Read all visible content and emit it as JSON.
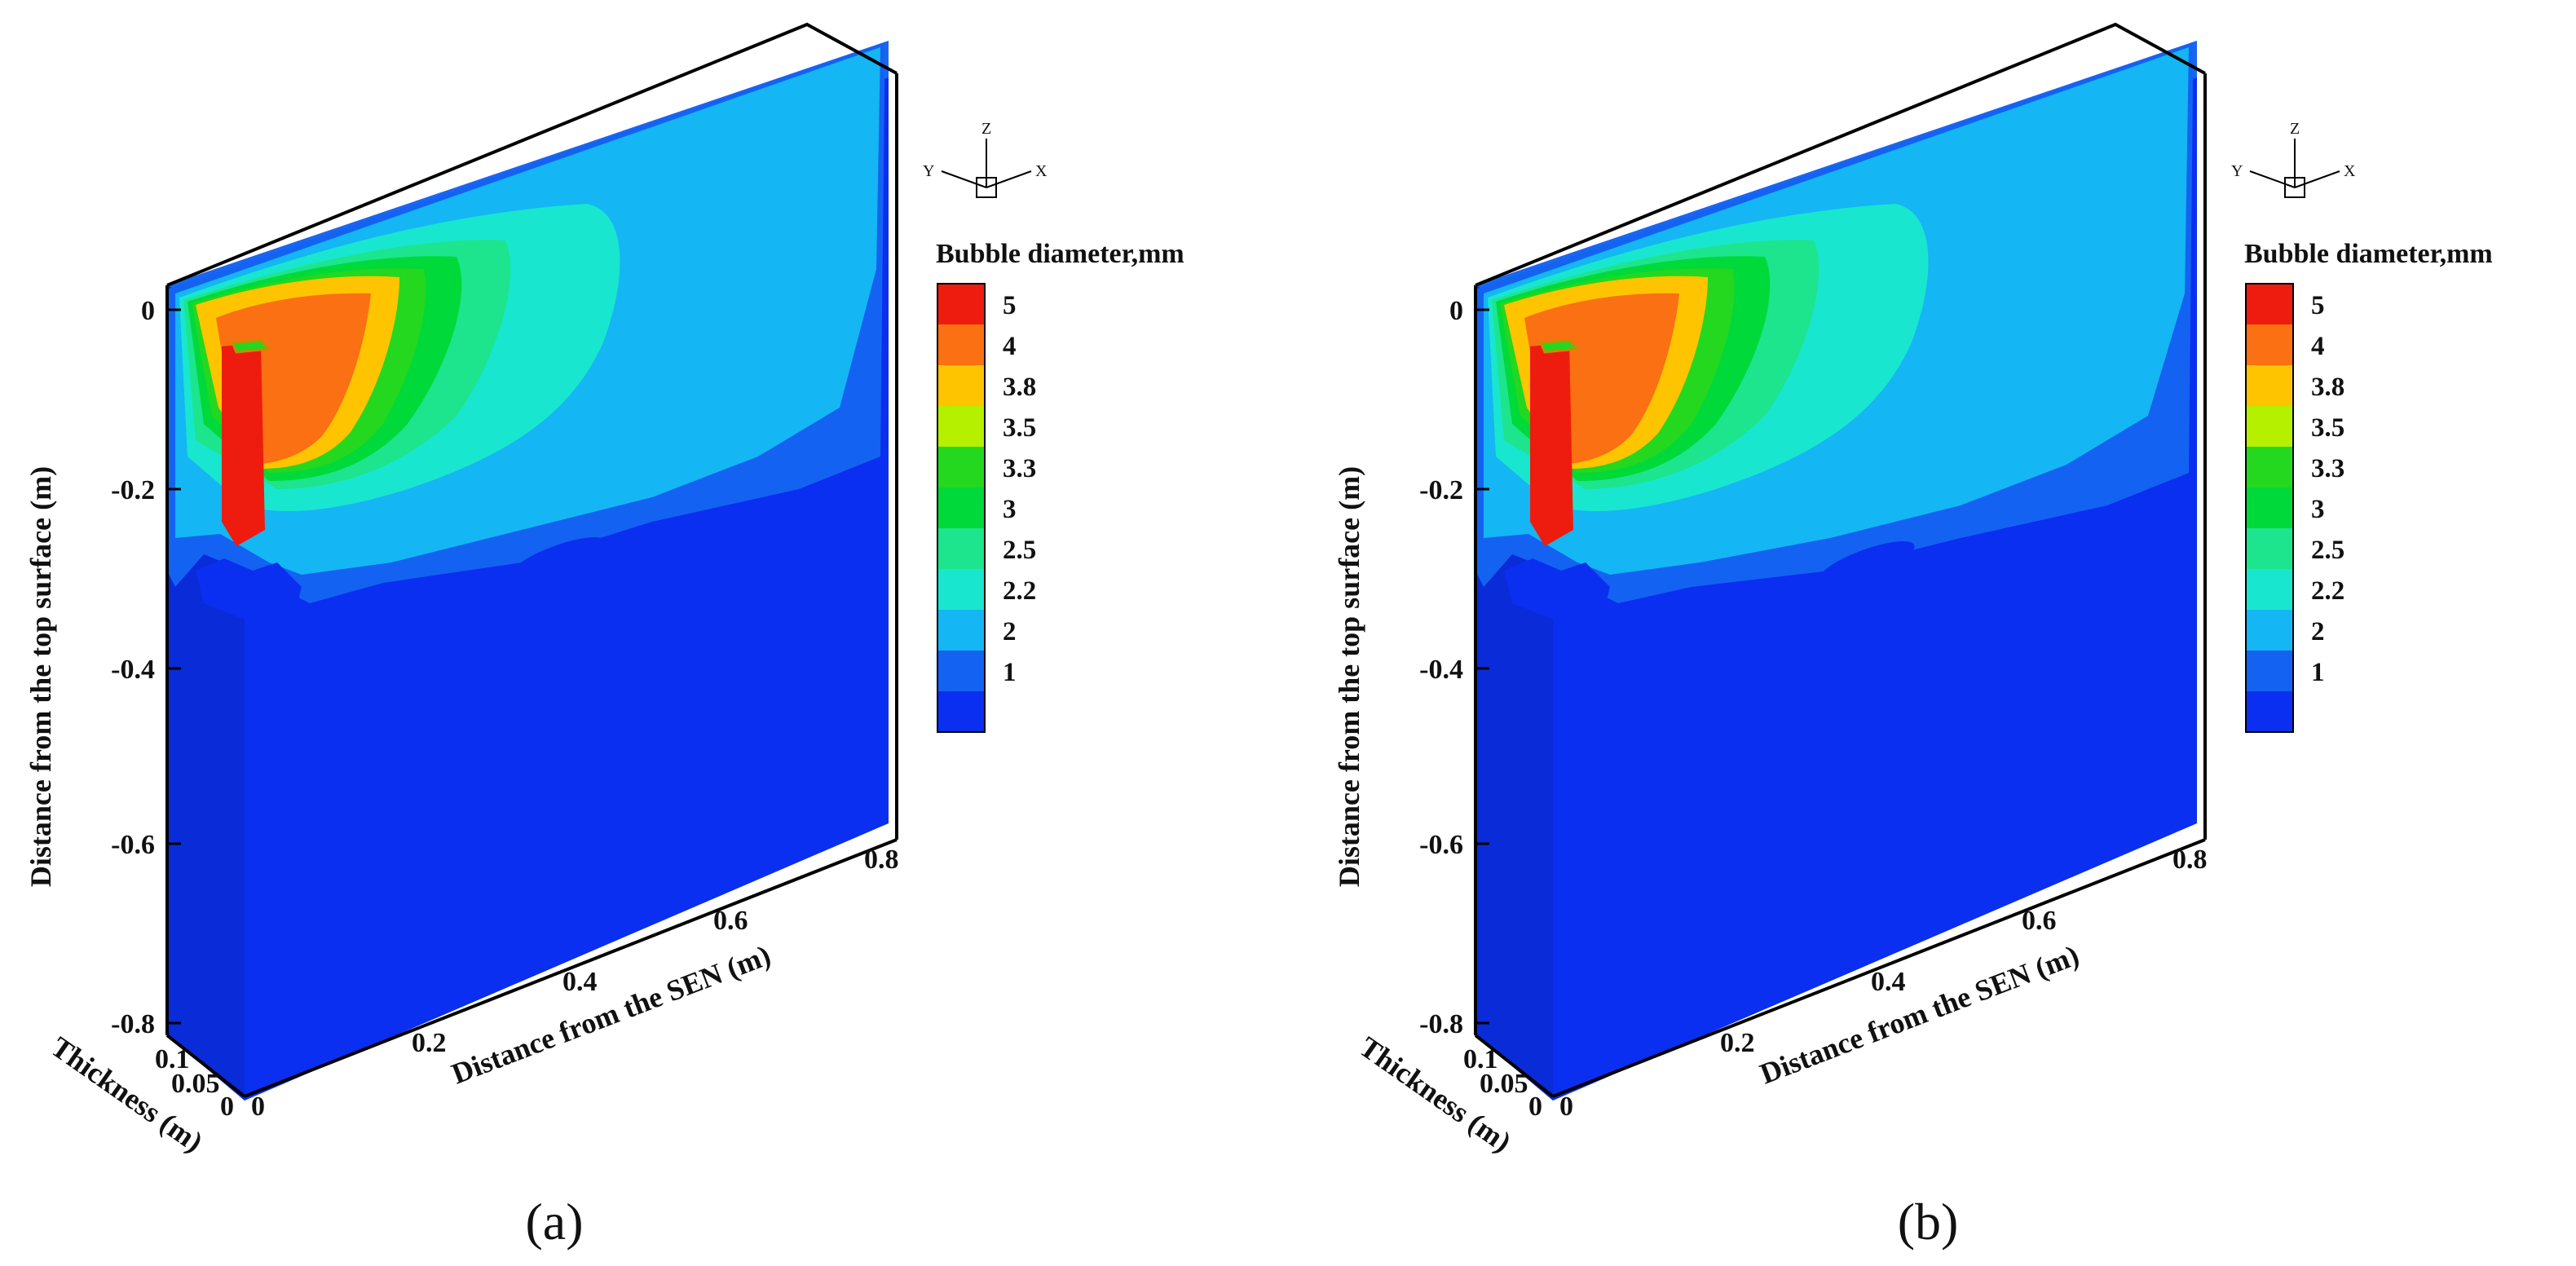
{
  "chart_data": [
    {
      "type": "contour-3d",
      "panel": "(a)",
      "panel_letter": "a",
      "legend_title": "Bubble diameter,mm",
      "levels": [
        {
          "value": 5,
          "label": "5",
          "color": "#ee1c0e"
        },
        {
          "value": 4,
          "label": "4",
          "color": "#fb7012"
        },
        {
          "value": 3.8,
          "label": "3.8",
          "color": "#ffc400"
        },
        {
          "value": 3.5,
          "label": "3.5",
          "color": "#b4f000"
        },
        {
          "value": 3.3,
          "label": "3.3",
          "color": "#23d81e"
        },
        {
          "value": 3,
          "label": "3",
          "color": "#00d93a"
        },
        {
          "value": 2.5,
          "label": "2.5",
          "color": "#1ce58e"
        },
        {
          "value": 2.2,
          "label": "2.2",
          "color": "#19e6cf"
        },
        {
          "value": 2,
          "label": "2",
          "color": "#14b6f3"
        },
        {
          "value": 1,
          "label": "1",
          "color": "#1462f2"
        },
        {
          "value": 0,
          "label": "",
          "color": "#0a2ff0"
        }
      ],
      "z_axis": {
        "title": "Distance from the top surface (m)",
        "ticks": [
          0,
          -0.2,
          -0.4,
          -0.6,
          -0.8
        ],
        "tick_labels": [
          "0",
          "-0.2",
          "-0.4",
          "-0.6",
          "-0.8"
        ],
        "range": [
          -0.8,
          0
        ]
      },
      "x_axis": {
        "title": "Distance from the SEN (m)",
        "ticks": [
          0,
          0.2,
          0.4,
          0.6,
          0.8
        ],
        "tick_labels": [
          "0",
          "0.2",
          "0.4",
          "0.6",
          "0.8"
        ],
        "range": [
          0,
          0.8
        ]
      },
      "y_axis": {
        "title": "Thickness (m)",
        "ticks": [
          0,
          0.05,
          0.1
        ],
        "tick_labels": [
          "0",
          "0.05",
          "0.1"
        ],
        "range": [
          0,
          0.1
        ]
      },
      "triad": {
        "x": "X",
        "y": "Y",
        "z": "Z"
      }
    },
    {
      "type": "contour-3d",
      "panel": "(b)",
      "panel_letter": "b",
      "legend_title": "Bubble diameter,mm",
      "levels": [
        {
          "value": 5,
          "label": "5",
          "color": "#ee1c0e"
        },
        {
          "value": 4,
          "label": "4",
          "color": "#fb7012"
        },
        {
          "value": 3.8,
          "label": "3.8",
          "color": "#ffc400"
        },
        {
          "value": 3.5,
          "label": "3.5",
          "color": "#b4f000"
        },
        {
          "value": 3.3,
          "label": "3.3",
          "color": "#23d81e"
        },
        {
          "value": 3,
          "label": "3",
          "color": "#00d93a"
        },
        {
          "value": 2.5,
          "label": "2.5",
          "color": "#1ce58e"
        },
        {
          "value": 2.2,
          "label": "2.2",
          "color": "#19e6cf"
        },
        {
          "value": 2,
          "label": "2",
          "color": "#14b6f3"
        },
        {
          "value": 1,
          "label": "1",
          "color": "#1462f2"
        },
        {
          "value": 0,
          "label": "",
          "color": "#0a2ff0"
        }
      ],
      "z_axis": {
        "title": "Distance from the top surface (m)",
        "ticks": [
          0,
          -0.2,
          -0.4,
          -0.6,
          -0.8
        ],
        "tick_labels": [
          "0",
          "-0.2",
          "-0.4",
          "-0.6",
          "-0.8"
        ],
        "range": [
          -0.8,
          0
        ]
      },
      "x_axis": {
        "title": "Distance from the SEN (m)",
        "ticks": [
          0,
          0.2,
          0.4,
          0.6,
          0.8
        ],
        "tick_labels": [
          "0",
          "0.2",
          "0.4",
          "0.6",
          "0.8"
        ],
        "range": [
          0,
          0.8
        ]
      },
      "y_axis": {
        "title": "Thickness (m)",
        "ticks": [
          0,
          0.05,
          0.1
        ],
        "tick_labels": [
          "0",
          "0.05",
          "0.1"
        ],
        "range": [
          0,
          0.1
        ]
      },
      "triad": {
        "x": "X",
        "y": "Y",
        "z": "Z"
      }
    }
  ]
}
